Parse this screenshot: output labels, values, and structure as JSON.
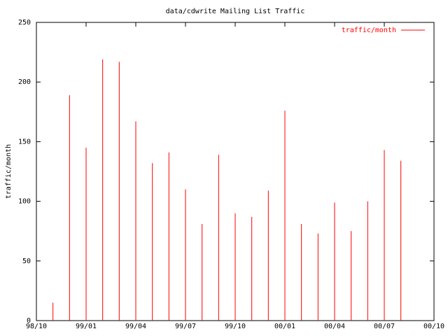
{
  "chart_data": {
    "type": "impulse",
    "title": "data/cdwrite Mailing List Traffic",
    "y_label": "traffic/month",
    "x": [
      "98/11",
      "98/12",
      "99/01",
      "99/02",
      "99/03",
      "99/04",
      "99/05",
      "99/06",
      "99/07",
      "99/08",
      "99/09",
      "99/10",
      "99/11",
      "99/12",
      "00/01",
      "00/02",
      "00/03",
      "00/04",
      "00/05",
      "00/06",
      "00/07",
      "00/08"
    ],
    "series": [
      {
        "name": "traffic/month",
        "color": "#ff0000",
        "values": [
          15,
          189,
          145,
          219,
          217,
          167,
          132,
          141,
          110,
          81,
          139,
          90,
          87,
          109,
          176,
          81,
          73,
          99,
          75,
          100,
          143,
          134
        ]
      }
    ],
    "xlim": [
      "98/10",
      "00/10"
    ],
    "xticks": [
      "98/10",
      "99/01",
      "99/04",
      "99/07",
      "99/10",
      "00/01",
      "00/04",
      "00/07",
      "00/10"
    ],
    "ylim": [
      0,
      250
    ],
    "yticks": [
      0,
      50,
      100,
      150,
      200,
      250
    ],
    "legend": "top-right",
    "grid": false
  }
}
